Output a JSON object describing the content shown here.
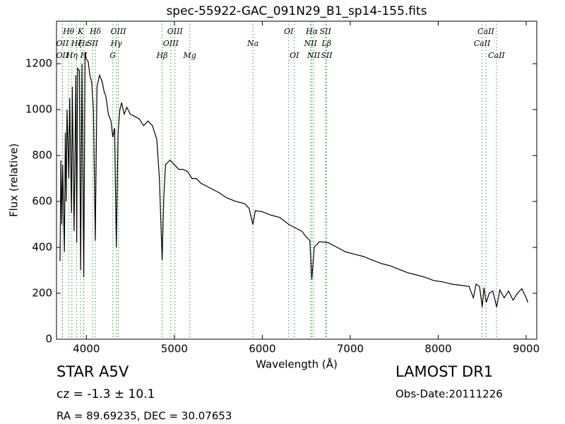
{
  "chart_data": {
    "type": "line",
    "title": "spec-55922-GAC_091N29_B1_sp14-155.fits",
    "xlabel": "Wavelength (Å)",
    "ylabel": "Flux (relative)",
    "color": "#000000",
    "line_color": "#2ca02c",
    "xlim": [
      3660,
      9120
    ],
    "ylim": [
      0,
      1385
    ],
    "xticks": [
      4000,
      5000,
      6000,
      7000,
      8000,
      9000
    ],
    "yticks": [
      0,
      200,
      400,
      600,
      800,
      1000,
      1200
    ],
    "x": [
      3700,
      3710,
      3720,
      3730,
      3750,
      3760,
      3770,
      3780,
      3800,
      3810,
      3830,
      3840,
      3860,
      3880,
      3890,
      3900,
      3920,
      3935,
      3950,
      3970,
      3985,
      4000,
      4020,
      4040,
      4060,
      4080,
      4101,
      4120,
      4150,
      4180,
      4200,
      4220,
      4250,
      4280,
      4300,
      4320,
      4340,
      4360,
      4380,
      4400,
      4430,
      4460,
      4500,
      4550,
      4600,
      4650,
      4700,
      4750,
      4800,
      4830,
      4861,
      4880,
      4900,
      4950,
      5000,
      5050,
      5100,
      5150,
      5200,
      5250,
      5300,
      5400,
      5500,
      5600,
      5700,
      5800,
      5850,
      5893,
      5920,
      6000,
      6100,
      6200,
      6300,
      6400,
      6450,
      6500,
      6540,
      6563,
      6590,
      6650,
      6750,
      6850,
      6950,
      7050,
      7150,
      7250,
      7350,
      7450,
      7550,
      7650,
      7750,
      7850,
      7950,
      8050,
      8150,
      8250,
      8350,
      8400,
      8430,
      8470,
      8500,
      8520,
      8545,
      8580,
      8620,
      8665,
      8700,
      8750,
      8800,
      8850,
      8900,
      8950,
      9000,
      9020
    ],
    "values": [
      340,
      780,
      500,
      760,
      380,
      900,
      600,
      1000,
      700,
      1050,
      550,
      1100,
      470,
      1150,
      420,
      1180,
      1170,
      300,
      1200,
      270,
      1250,
      1220,
      1210,
      1150,
      1120,
      1000,
      430,
      1100,
      1150,
      1120,
      1080,
      1060,
      980,
      950,
      880,
      920,
      400,
      900,
      1000,
      1030,
      980,
      1010,
      980,
      970,
      960,
      930,
      950,
      930,
      870,
      700,
      345,
      620,
      760,
      780,
      760,
      740,
      740,
      730,
      700,
      700,
      680,
      660,
      640,
      615,
      600,
      590,
      570,
      500,
      560,
      555,
      540,
      530,
      500,
      480,
      470,
      445,
      430,
      260,
      400,
      425,
      420,
      400,
      380,
      370,
      360,
      345,
      330,
      320,
      305,
      290,
      280,
      270,
      255,
      250,
      240,
      235,
      230,
      180,
      240,
      230,
      140,
      225,
      160,
      200,
      210,
      140,
      215,
      180,
      210,
      170,
      200,
      220,
      180,
      160
    ],
    "line_labels": [
      [
        {
          "label": "Hθ",
          "x": 3798
        },
        {
          "label": "K",
          "x": 3934
        },
        {
          "label": "Hδ",
          "x": 4102
        },
        {
          "label": "OIII",
          "x": 4363
        },
        {
          "label": "OIII",
          "x": 5007
        },
        {
          "label": "OI",
          "x": 6300
        },
        {
          "label": "Hα",
          "x": 6563
        },
        {
          "label": "SII",
          "x": 6717
        },
        {
          "label": "CaII",
          "x": 8542
        }
      ],
      [
        {
          "label": "OII",
          "x": 3727
        },
        {
          "label": "Hζ",
          "x": 3889
        },
        {
          "label": "Hε",
          "x": 3970
        },
        {
          "label": "SII",
          "x": 4069
        },
        {
          "label": "Hγ",
          "x": 4340
        },
        {
          "label": "OIII",
          "x": 4959
        },
        {
          "label": "Na",
          "x": 5893
        },
        {
          "label": "NII",
          "x": 6548
        },
        {
          "label": "Lβ",
          "x": 6730
        },
        {
          "label": "CaII",
          "x": 8498
        }
      ],
      [
        {
          "label": "OII",
          "x": 3727
        },
        {
          "label": "Hη",
          "x": 3835
        },
        {
          "label": "H",
          "x": 3970
        },
        {
          "label": "G",
          "x": 4300
        },
        {
          "label": "Hβ",
          "x": 4861
        },
        {
          "label": "Mg",
          "x": 5175
        },
        {
          "label": "OI",
          "x": 6364
        },
        {
          "label": "NII",
          "x": 6583
        },
        {
          "label": "SII",
          "x": 6731
        },
        {
          "label": "CaII",
          "x": 8662
        }
      ]
    ]
  },
  "info": {
    "star": "STAR   A5V",
    "cz": "cz = -1.3 ± 10.1",
    "coords": "RA = 89.69235, DEC = 30.07653",
    "survey": "LAMOST DR1",
    "obs_date": "Obs-Date:20111226"
  }
}
